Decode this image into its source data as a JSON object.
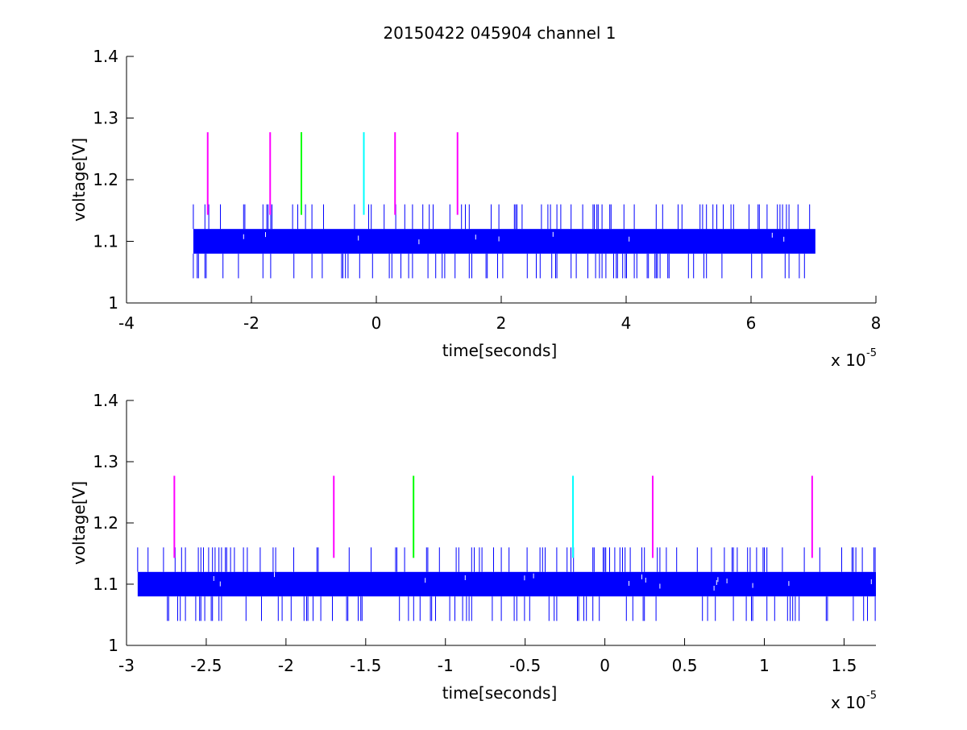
{
  "title": "20150422 045904 channel 1",
  "chart_data": [
    {
      "type": "line",
      "xlabel": "time[seconds]",
      "ylabel": "voltage[V]",
      "x_multiplier_label": "x 10",
      "x_multiplier_exponent": "-5",
      "xlim": [
        -4,
        8
      ],
      "ylim": [
        1,
        1.4
      ],
      "xticks": [
        -4,
        -2,
        0,
        2,
        4,
        6,
        8
      ],
      "xtick_labels": [
        "-4",
        "-2",
        "0",
        "2",
        "4",
        "6",
        "8"
      ],
      "yticks": [
        1,
        1.1,
        1.2,
        1.3,
        1.4
      ],
      "ytick_labels": [
        "1",
        "1.1",
        "1.2",
        "1.3",
        "1.4"
      ],
      "grid": false,
      "signal": {
        "color": "#0000ff",
        "x_range": [
          -2.93,
          7.03
        ],
        "band": [
          1.08,
          1.12
        ],
        "spike_high": 1.16,
        "spike_low": 1.04
      },
      "markers": [
        {
          "x": -2.7,
          "y_range": [
            1.143,
            1.277
          ],
          "color": "#ff00ff"
        },
        {
          "x": -1.7,
          "y_range": [
            1.143,
            1.277
          ],
          "color": "#ff00ff"
        },
        {
          "x": -1.2,
          "y_range": [
            1.143,
            1.277
          ],
          "color": "#00ff00"
        },
        {
          "x": -0.2,
          "y_range": [
            1.143,
            1.277
          ],
          "color": "#00ffff"
        },
        {
          "x": 0.3,
          "y_range": [
            1.143,
            1.277
          ],
          "color": "#ff00ff"
        },
        {
          "x": 1.3,
          "y_range": [
            1.143,
            1.277
          ],
          "color": "#ff00ff"
        }
      ]
    },
    {
      "type": "line",
      "xlabel": "time[seconds]",
      "ylabel": "voltage[V]",
      "x_multiplier_label": "x 10",
      "x_multiplier_exponent": "-5",
      "xlim": [
        -3,
        1.7
      ],
      "ylim": [
        1,
        1.4
      ],
      "xticks": [
        -3,
        -2.5,
        -2,
        -1.5,
        -1,
        -0.5,
        0,
        0.5,
        1,
        1.5
      ],
      "xtick_labels": [
        "-3",
        "-2.5",
        "-2",
        "-1.5",
        "-1",
        "-0.5",
        "0",
        "0.5",
        "1",
        "1.5"
      ],
      "yticks": [
        1,
        1.1,
        1.2,
        1.3,
        1.4
      ],
      "ytick_labels": [
        "1",
        "1.1",
        "1.2",
        "1.3",
        "1.4"
      ],
      "grid": false,
      "signal": {
        "color": "#0000ff",
        "x_range": [
          -2.93,
          1.7
        ],
        "band": [
          1.08,
          1.12
        ],
        "spike_high": 1.16,
        "spike_low": 1.04
      },
      "markers": [
        {
          "x": -2.7,
          "y_range": [
            1.143,
            1.277
          ],
          "color": "#ff00ff"
        },
        {
          "x": -1.7,
          "y_range": [
            1.143,
            1.277
          ],
          "color": "#ff00ff"
        },
        {
          "x": -1.2,
          "y_range": [
            1.143,
            1.277
          ],
          "color": "#00ff00"
        },
        {
          "x": -0.2,
          "y_range": [
            1.143,
            1.277
          ],
          "color": "#00ffff"
        },
        {
          "x": 0.3,
          "y_range": [
            1.143,
            1.277
          ],
          "color": "#ff00ff"
        },
        {
          "x": 1.3,
          "y_range": [
            1.143,
            1.277
          ],
          "color": "#ff00ff"
        }
      ]
    }
  ]
}
